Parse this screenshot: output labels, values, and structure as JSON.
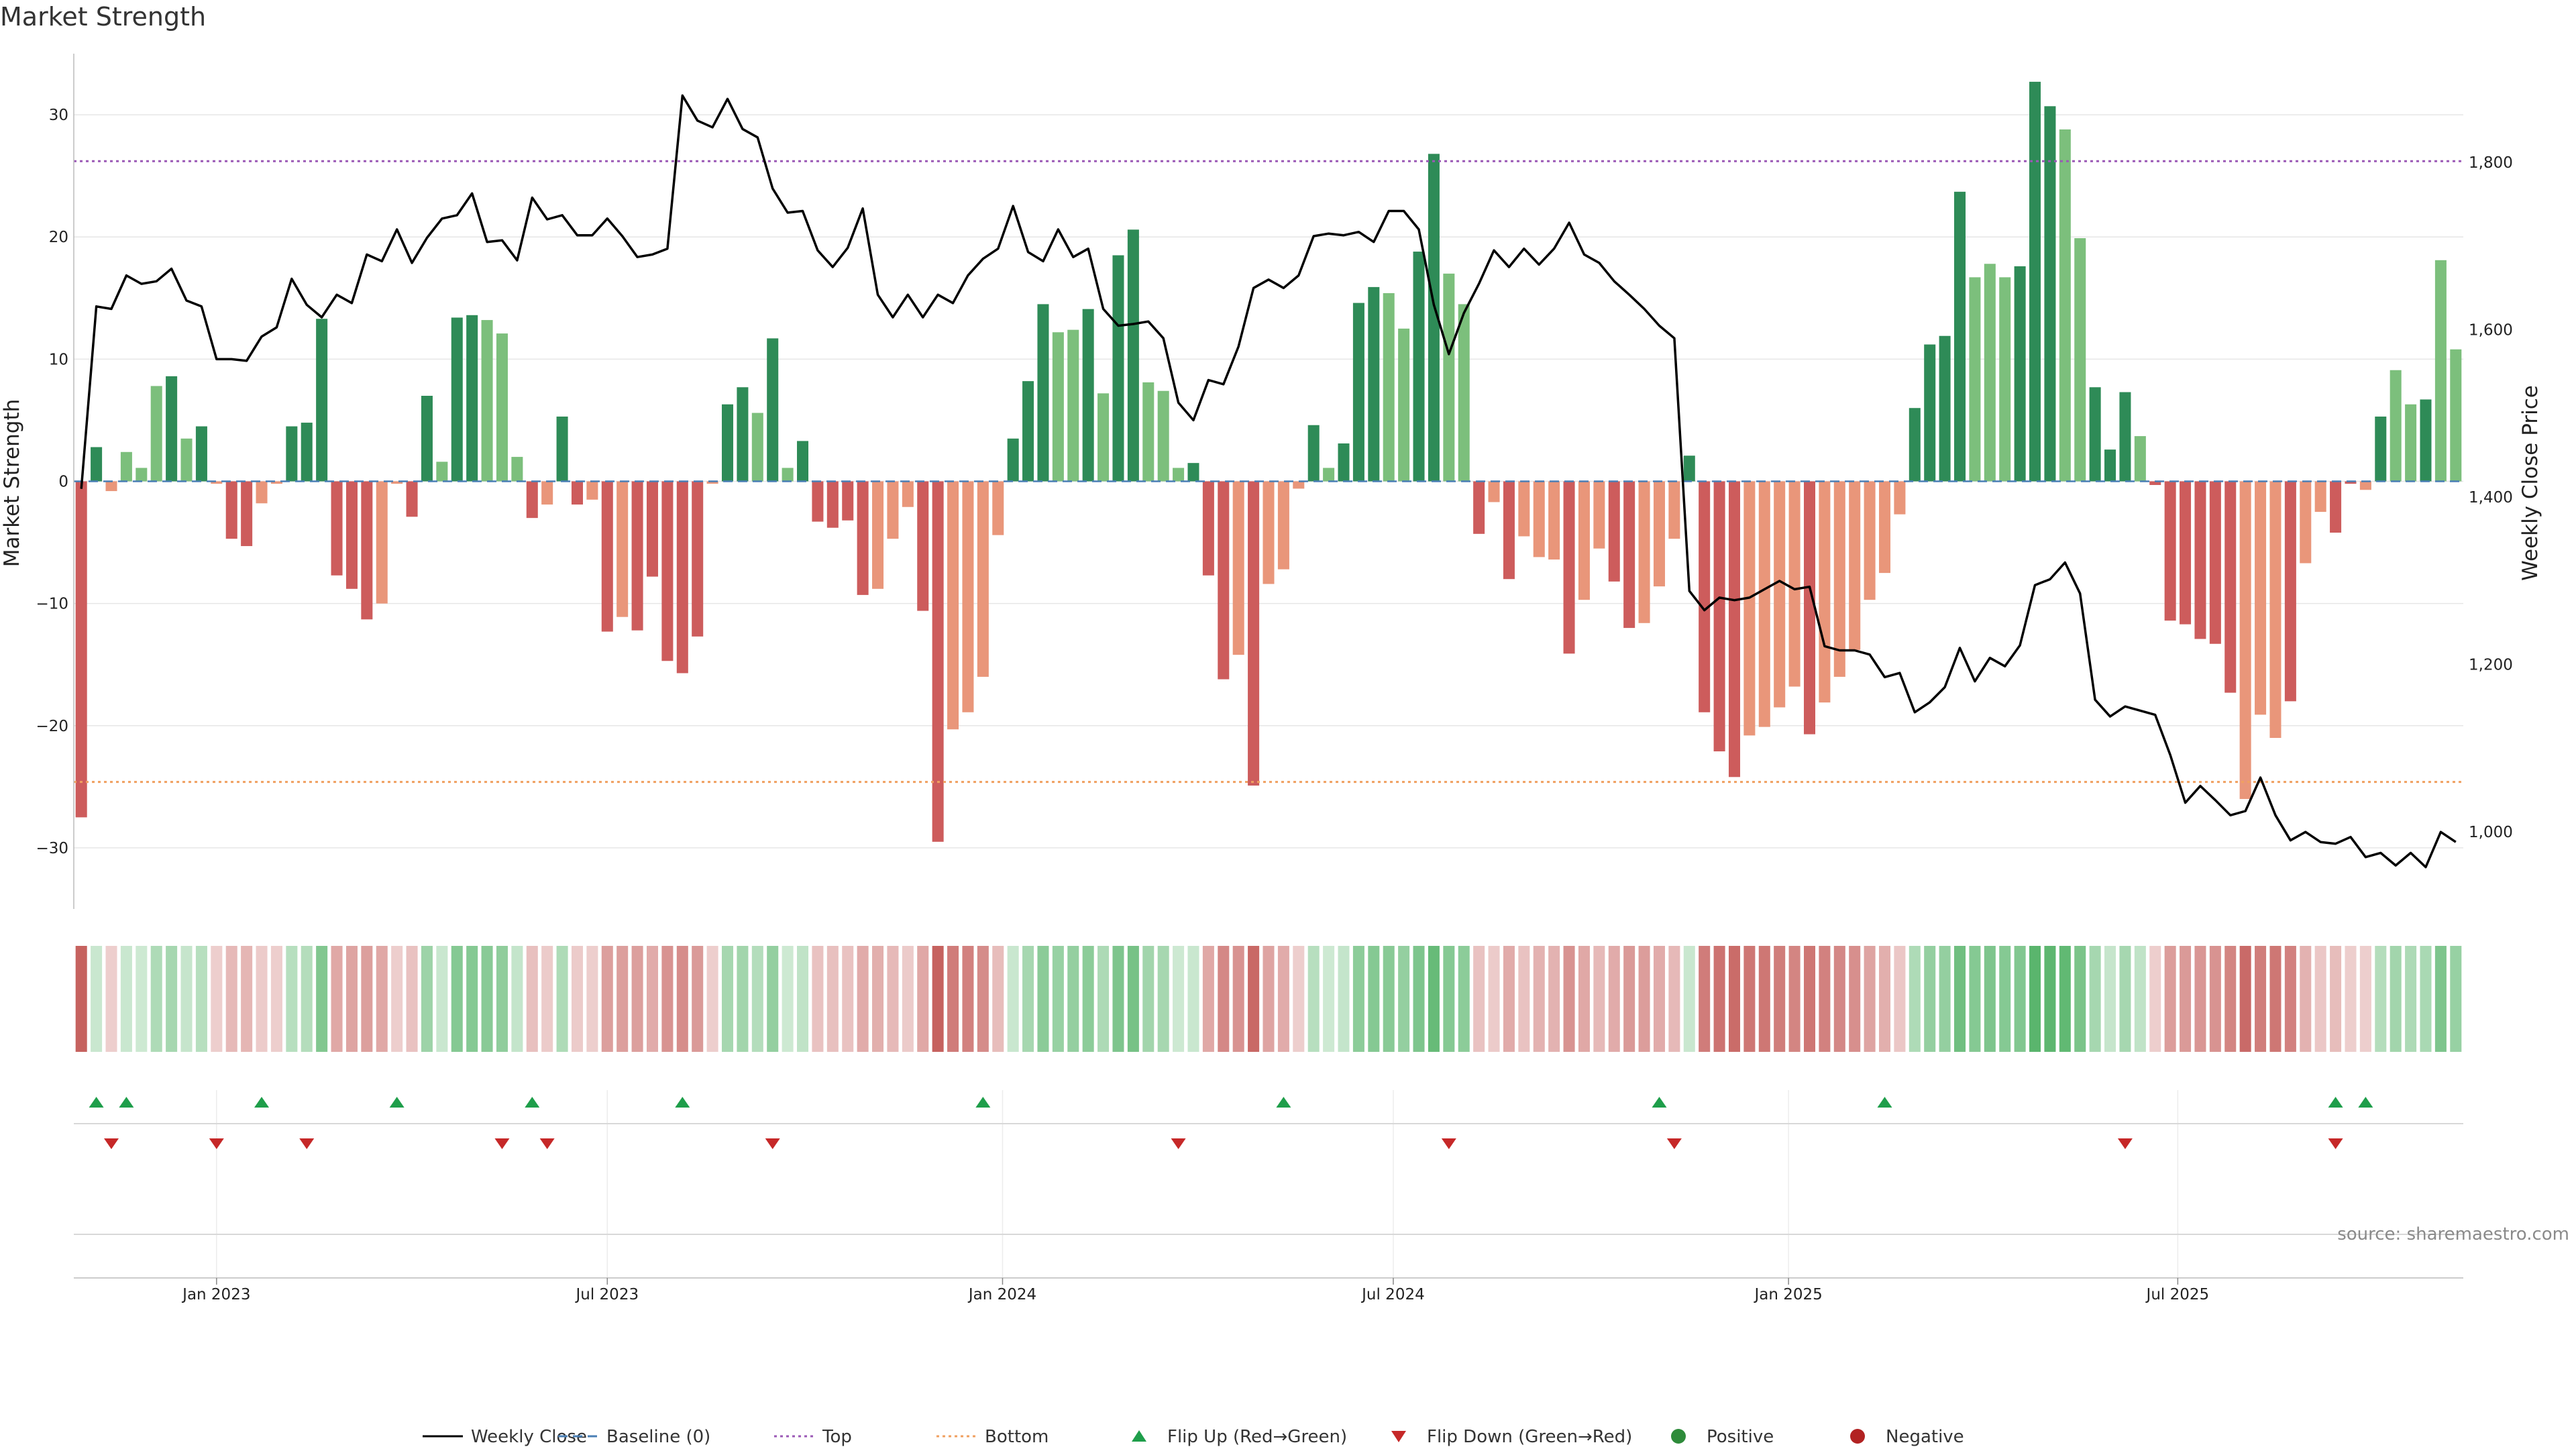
{
  "chart_data": {
    "type": "bar",
    "title": "Market Strength",
    "ylabel": "Market Strength",
    "y2label": "Weekly Close Price",
    "source": "source: sharemaestro.com",
    "ylim": [
      -35,
      35
    ],
    "y2lim": [
      908,
      1930
    ],
    "yticks": [
      -30,
      -20,
      -10,
      0,
      10,
      20,
      30
    ],
    "y2ticks": [
      1000,
      1200,
      1400,
      1600,
      1800
    ],
    "y2tick_labels": [
      "1,000",
      "1,200",
      "1,400",
      "1,600",
      "1,800"
    ],
    "top_line": 26.2,
    "bottom_line": -24.6,
    "x_start": "2022-11-01",
    "x_step_days": 7,
    "xticks": [
      {
        "label": "Jan 2023",
        "index": 9
      },
      {
        "label": "Jul 2023",
        "index": 35
      },
      {
        "label": "Jan 2024",
        "index": 61.3
      },
      {
        "label": "Jul 2024",
        "index": 87.3
      },
      {
        "label": "Jan 2025",
        "index": 113.6
      },
      {
        "label": "Jul 2025",
        "index": 139.5
      }
    ],
    "values": [
      -27.5,
      2.8,
      -0.8,
      2.4,
      1.1,
      7.8,
      8.6,
      3.5,
      4.5,
      -0.2,
      -4.7,
      -5.3,
      -1.8,
      -0.2,
      4.5,
      4.8,
      13.3,
      -7.7,
      -8.8,
      -11.3,
      -10.0,
      -0.2,
      -2.9,
      7.0,
      1.6,
      13.4,
      13.6,
      13.2,
      12.1,
      2.0,
      -3.0,
      -1.9,
      5.3,
      -1.9,
      -1.5,
      -12.3,
      -11.1,
      -12.2,
      -7.8,
      -14.7,
      -15.7,
      -12.7,
      -0.2,
      6.3,
      7.7,
      5.6,
      11.7,
      1.1,
      3.3,
      -3.3,
      -3.8,
      -3.2,
      -9.3,
      -8.8,
      -4.7,
      -2.1,
      -10.6,
      -29.5,
      -20.3,
      -18.9,
      -16.0,
      -4.4,
      3.5,
      8.2,
      14.5,
      12.2,
      12.4,
      14.1,
      7.2,
      18.5,
      20.6,
      8.1,
      7.4,
      1.1,
      1.5,
      -7.7,
      -16.2,
      -14.2,
      -24.9,
      -8.4,
      -7.2,
      -0.6,
      4.6,
      1.1,
      3.1,
      14.6,
      15.9,
      15.4,
      12.5,
      18.8,
      26.8,
      17.0,
      14.5,
      -4.3,
      -1.7,
      -8.0,
      -4.5,
      -6.2,
      -6.4,
      -14.1,
      -9.7,
      -5.5,
      -8.2,
      -12.0,
      -11.6,
      -8.6,
      -4.7,
      2.1,
      -18.9,
      -22.1,
      -24.2,
      -20.8,
      -20.1,
      -18.5,
      -16.8,
      -20.7,
      -18.1,
      -16.0,
      -13.8,
      -9.7,
      -7.5,
      -2.7,
      6.0,
      11.2,
      11.9,
      23.7,
      16.7,
      17.8,
      16.7,
      17.6,
      32.7,
      30.7,
      28.8,
      19.9,
      7.7,
      2.6,
      7.3,
      3.7,
      -0.3,
      -11.4,
      -11.7,
      -12.9,
      -13.3,
      -17.3,
      -26.0,
      -19.1,
      -21.0,
      -18.0,
      -6.7,
      -2.5,
      -4.2,
      -0.2,
      -0.7,
      5.3,
      9.1,
      6.3,
      6.7,
      18.1,
      10.8
    ],
    "strength": [
      2,
      2,
      1,
      1,
      0,
      1,
      2,
      1,
      2,
      0,
      2,
      2,
      1,
      0,
      2,
      2,
      2,
      2,
      2,
      2,
      1,
      0,
      2,
      2,
      1,
      2,
      2,
      1,
      1,
      1,
      2,
      1,
      2,
      2,
      1,
      2,
      1,
      2,
      2,
      2,
      2,
      2,
      0,
      2,
      2,
      1,
      2,
      0,
      2,
      2,
      2,
      2,
      2,
      1,
      1,
      1,
      2,
      2,
      1,
      1,
      1,
      1,
      2,
      2,
      2,
      1,
      1,
      2,
      1,
      2,
      2,
      1,
      1,
      0,
      2,
      2,
      2,
      1,
      2,
      1,
      1,
      0,
      2,
      1,
      2,
      2,
      2,
      1,
      1,
      2,
      2,
      1,
      1,
      2,
      1,
      2,
      1,
      1,
      1,
      2,
      1,
      1,
      2,
      2,
      1,
      1,
      1,
      2,
      2,
      2,
      2,
      1,
      1,
      1,
      1,
      2,
      1,
      1,
      1,
      1,
      1,
      1,
      2,
      2,
      2,
      2,
      1,
      1,
      1,
      2,
      2,
      2,
      1,
      1,
      2,
      2,
      2,
      1,
      2,
      2,
      2,
      2,
      2,
      2,
      1,
      1,
      1,
      2,
      1,
      1,
      2,
      2,
      1,
      2,
      1,
      1,
      2,
      1
    ],
    "heat_alpha": [
      0.9,
      0.3,
      0.28,
      0.3,
      0.28,
      0.45,
      0.5,
      0.32,
      0.4,
      0.28,
      0.4,
      0.42,
      0.3,
      0.28,
      0.4,
      0.42,
      0.7,
      0.5,
      0.52,
      0.55,
      0.5,
      0.28,
      0.35,
      0.55,
      0.3,
      0.68,
      0.68,
      0.66,
      0.62,
      0.33,
      0.36,
      0.3,
      0.45,
      0.3,
      0.28,
      0.55,
      0.55,
      0.55,
      0.48,
      0.62,
      0.65,
      0.58,
      0.28,
      0.5,
      0.52,
      0.42,
      0.6,
      0.28,
      0.35,
      0.35,
      0.36,
      0.35,
      0.48,
      0.46,
      0.4,
      0.3,
      0.5,
      0.9,
      0.75,
      0.72,
      0.66,
      0.38,
      0.3,
      0.5,
      0.65,
      0.58,
      0.6,
      0.64,
      0.46,
      0.72,
      0.76,
      0.52,
      0.5,
      0.28,
      0.3,
      0.5,
      0.68,
      0.62,
      0.86,
      0.52,
      0.48,
      0.28,
      0.4,
      0.28,
      0.33,
      0.64,
      0.68,
      0.66,
      0.6,
      0.72,
      0.85,
      0.68,
      0.64,
      0.35,
      0.3,
      0.48,
      0.35,
      0.44,
      0.44,
      0.62,
      0.5,
      0.4,
      0.48,
      0.58,
      0.56,
      0.48,
      0.4,
      0.3,
      0.75,
      0.8,
      0.84,
      0.78,
      0.78,
      0.74,
      0.7,
      0.78,
      0.72,
      0.68,
      0.64,
      0.52,
      0.46,
      0.32,
      0.45,
      0.6,
      0.6,
      0.8,
      0.68,
      0.72,
      0.68,
      0.7,
      0.92,
      0.9,
      0.88,
      0.74,
      0.5,
      0.32,
      0.5,
      0.35,
      0.28,
      0.56,
      0.58,
      0.6,
      0.62,
      0.7,
      0.85,
      0.74,
      0.78,
      0.72,
      0.44,
      0.32,
      0.38,
      0.28,
      0.28,
      0.42,
      0.52,
      0.46,
      0.48,
      0.72,
      0.58
    ],
    "price": [
      1410,
      1628,
      1625,
      1665,
      1655,
      1658,
      1673,
      1635,
      1628,
      1565,
      1565,
      1563,
      1592,
      1603,
      1661,
      1630,
      1615,
      1642,
      1632,
      1690,
      1682,
      1720,
      1680,
      1710,
      1733,
      1737,
      1763,
      1705,
      1707,
      1683,
      1758,
      1732,
      1737,
      1713,
      1713,
      1733,
      1712,
      1687,
      1690,
      1697,
      1880,
      1850,
      1842,
      1876,
      1840,
      1830,
      1769,
      1740,
      1742,
      1695,
      1675,
      1698,
      1745,
      1642,
      1615,
      1642,
      1615,
      1642,
      1632,
      1665,
      1685,
      1697,
      1748,
      1693,
      1682,
      1720,
      1687,
      1697,
      1625,
      1605,
      1607,
      1610,
      1590,
      1513,
      1492,
      1540,
      1535,
      1580,
      1650,
      1660,
      1650,
      1665,
      1712,
      1715,
      1713,
      1717,
      1705,
      1742,
      1742,
      1720,
      1630,
      1571,
      1620,
      1655,
      1695,
      1675,
      1697,
      1678,
      1697,
      1728,
      1690,
      1680,
      1658,
      1642,
      1625,
      1605,
      1590,
      1288,
      1265,
      1280,
      1277,
      1280,
      1290,
      1300,
      1290,
      1293,
      1222,
      1217,
      1217,
      1212,
      1185,
      1190,
      1143,
      1155,
      1173,
      1220,
      1180,
      1208,
      1198,
      1223,
      1295,
      1302,
      1322,
      1285,
      1158,
      1138,
      1150,
      1145,
      1140,
      1092,
      1035,
      1055,
      1038,
      1020,
      1025,
      1065,
      1020,
      990,
      1000,
      988,
      986,
      994,
      970,
      975,
      960,
      975,
      958,
      1000,
      988
    ],
    "flip_up_indices": [
      1,
      3,
      12,
      21,
      30,
      40,
      60,
      80,
      105,
      120,
      150,
      152
    ],
    "flip_down_indices": [
      2,
      9,
      15,
      28,
      31,
      46,
      73,
      91,
      106,
      136,
      150
    ],
    "legend": [
      {
        "label": "Weekly Close",
        "kind": "line",
        "color": "#000000"
      },
      {
        "label": "Baseline (0)",
        "kind": "dash",
        "color": "#4a7fb5"
      },
      {
        "label": "Top",
        "kind": "dot",
        "color": "#9b59b6"
      },
      {
        "label": "Bottom",
        "kind": "dot",
        "color": "#f0a060"
      },
      {
        "label": "Flip Up (Red→Green)",
        "kind": "tri-up",
        "color": "#1e9e4a"
      },
      {
        "label": "Flip Down (Green→Red)",
        "kind": "tri-down",
        "color": "#c62828"
      },
      {
        "label": "Positive",
        "kind": "circle",
        "color": "#2e8b3a"
      },
      {
        "label": "Negative",
        "kind": "circle",
        "color": "#b22222"
      }
    ],
    "colors": {
      "pos_strong": "#2e8b57",
      "pos_weak": "#7cbf7c",
      "neg_strong": "#cd5c5c",
      "neg_weak": "#e9967a",
      "heat_pos": "#4caf60",
      "heat_neg": "#c0504d",
      "baseline": "#4a7fb5",
      "top": "#9b59b6",
      "bottom": "#f0a060",
      "flip_up": "#1e9e4a",
      "flip_down": "#c62828"
    }
  }
}
